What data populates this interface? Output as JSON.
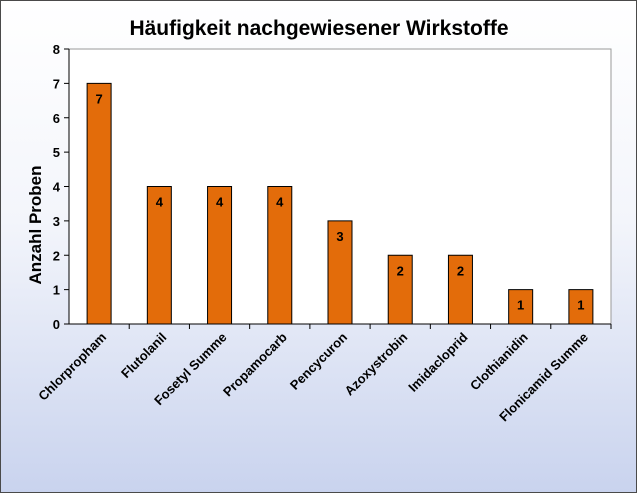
{
  "chart_data": {
    "type": "bar",
    "title": "Häufigkeit nachgewiesener Wirkstoffe",
    "xlabel": "",
    "ylabel": "Anzahl Proben",
    "ylim": [
      0,
      8
    ],
    "yticks": [
      0,
      1,
      2,
      3,
      4,
      5,
      6,
      7,
      8
    ],
    "categories": [
      "Chlorpropham",
      "Flutolanil",
      "Fosetyl Summe",
      "Propamocarb",
      "Pencycuron",
      "Azoxystrobin",
      "Imidacloprid",
      "Clothianidin",
      "Flonicamid Summe"
    ],
    "values": [
      7,
      4,
      4,
      4,
      3,
      2,
      2,
      1,
      1
    ],
    "data_labels": [
      "7",
      "4",
      "4",
      "4",
      "3",
      "2",
      "2",
      "1",
      "1"
    ],
    "grid": false,
    "legend": "none",
    "bar_color": "#e36c0a",
    "bar_border_color": "#000000"
  }
}
